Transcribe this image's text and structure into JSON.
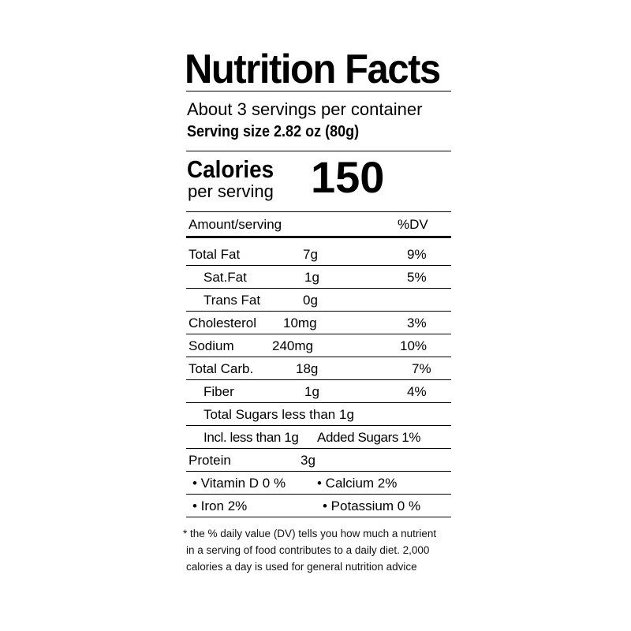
{
  "label": {
    "title": "Nutrition Facts",
    "servings_per_container": "About 3 servings per container",
    "serving_size": "Serving size 2.82 oz (80g)",
    "calories_label": "Calories",
    "calories_sublabel": "per serving",
    "calories_value": "150",
    "header_amount": "Amount/serving",
    "header_dv": "%DV",
    "rows": [
      {
        "name": "Total Fat",
        "amount": "7g",
        "dv": "9%"
      },
      {
        "name": "Sat.Fat",
        "amount": "1g",
        "dv": "5%"
      },
      {
        "name": "Trans Fat",
        "amount": "0g",
        "dv": ""
      },
      {
        "name": "Cholesterol",
        "amount": "10mg",
        "dv": "3%"
      },
      {
        "name": "Sodium",
        "amount": "240mg",
        "dv": "10%"
      },
      {
        "name": "Total Carb.",
        "amount": "18g",
        "dv": "7%"
      },
      {
        "name": "Fiber",
        "amount": "1g",
        "dv": "4%"
      },
      {
        "name": "Total Sugars less than 1g"
      },
      {
        "name": "Incl. less than 1g",
        "added": "Added Sugars 1%"
      },
      {
        "name": "Protein",
        "amount": "3g"
      }
    ],
    "micronutrients": [
      {
        "left": "• Vitamin D 0 %",
        "right": "• Calcium 2%"
      },
      {
        "left": "• Iron  2%",
        "right": "• Potassium 0 %"
      }
    ],
    "footnote": [
      "* the % daily value (DV) tells you how much a nutrient",
      "in a serving of food contributes to a daily diet. 2,000",
      "calories a day is used for general nutrition advice"
    ]
  }
}
